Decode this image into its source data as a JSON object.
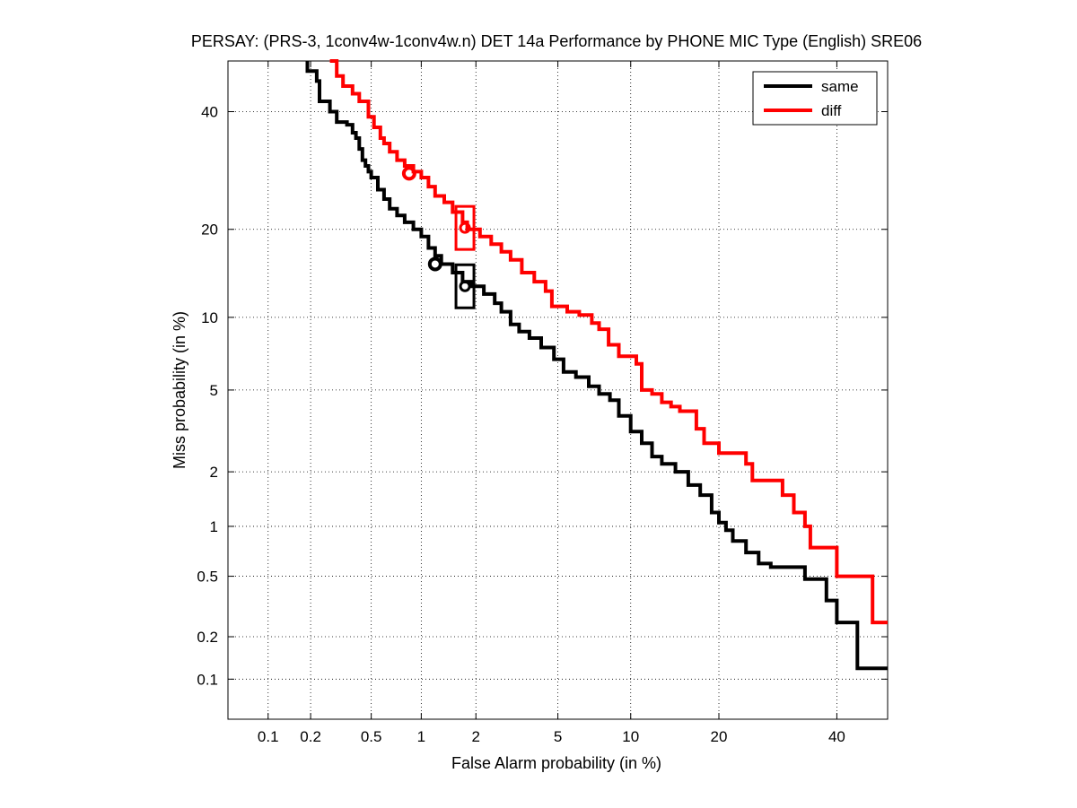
{
  "chart_data": {
    "type": "line",
    "title": "PERSAY: (PRS-3, 1conv4w-1conv4w.n) DET 14a Performance by PHONE MIC Type (English) SRE06",
    "xlabel": "False Alarm probability (in %)",
    "ylabel": "Miss probability (in %)",
    "scale": "normal-deviate (probit) on both axes",
    "xlim": [
      0.05,
      50
    ],
    "ylim": [
      0.05,
      50
    ],
    "x_ticks": [
      0.1,
      0.2,
      0.5,
      1,
      2,
      5,
      10,
      20,
      40
    ],
    "x_tick_labels": [
      "0.1",
      "0.2",
      "0.5",
      "1",
      "2",
      "5",
      "10",
      "20",
      "40"
    ],
    "y_ticks": [
      0.1,
      0.2,
      0.5,
      1,
      2,
      5,
      10,
      20,
      40
    ],
    "y_tick_labels": [
      "0.1",
      "0.2",
      "0.5",
      "1",
      "2",
      "5",
      "10",
      "20",
      "40"
    ],
    "grid": true,
    "legend_position": "top-right",
    "series": [
      {
        "name": "same",
        "color": "#000000",
        "points": [
          [
            0.19,
            50
          ],
          [
            0.19,
            48
          ],
          [
            0.22,
            46
          ],
          [
            0.23,
            42
          ],
          [
            0.27,
            40
          ],
          [
            0.3,
            38
          ],
          [
            0.35,
            37.5
          ],
          [
            0.38,
            36
          ],
          [
            0.4,
            35
          ],
          [
            0.42,
            33
          ],
          [
            0.44,
            31
          ],
          [
            0.46,
            30
          ],
          [
            0.48,
            29
          ],
          [
            0.5,
            28
          ],
          [
            0.55,
            26
          ],
          [
            0.6,
            24.5
          ],
          [
            0.65,
            23
          ],
          [
            0.72,
            22
          ],
          [
            0.8,
            21
          ],
          [
            0.9,
            20
          ],
          [
            1.0,
            19
          ],
          [
            1.1,
            17.5
          ],
          [
            1.2,
            16.5
          ],
          [
            1.3,
            15.5
          ],
          [
            1.5,
            14.5
          ],
          [
            1.7,
            13.5
          ],
          [
            1.9,
            13
          ],
          [
            2.2,
            12.2
          ],
          [
            2.5,
            11.3
          ],
          [
            2.7,
            10.5
          ],
          [
            3.0,
            9.4
          ],
          [
            3.3,
            8.8
          ],
          [
            3.7,
            8.3
          ],
          [
            4.2,
            7.6
          ],
          [
            4.8,
            6.8
          ],
          [
            5.3,
            6.0
          ],
          [
            6.0,
            5.7
          ],
          [
            6.8,
            5.2
          ],
          [
            7.5,
            4.8
          ],
          [
            8.3,
            4.5
          ],
          [
            9.0,
            3.8
          ],
          [
            10,
            3.2
          ],
          [
            11,
            2.8
          ],
          [
            12,
            2.4
          ],
          [
            13,
            2.2
          ],
          [
            14.5,
            2.0
          ],
          [
            16,
            1.7
          ],
          [
            17.5,
            1.5
          ],
          [
            19,
            1.2
          ],
          [
            20,
            1.05
          ],
          [
            21,
            0.95
          ],
          [
            22,
            0.82
          ],
          [
            24,
            0.7
          ],
          [
            26,
            0.6
          ],
          [
            28,
            0.57
          ],
          [
            32,
            0.57
          ],
          [
            34,
            0.48
          ],
          [
            37,
            0.48
          ],
          [
            38,
            0.35
          ],
          [
            40,
            0.35
          ],
          [
            40,
            0.25
          ],
          [
            44,
            0.25
          ],
          [
            44,
            0.12
          ],
          [
            50,
            0.12
          ]
        ],
        "operating_points": [
          {
            "marker": "circle",
            "x": 1.2,
            "y": 15.5
          },
          {
            "marker": "box",
            "x": 1.75,
            "y": 13
          }
        ]
      },
      {
        "name": "diff",
        "color": "#ff0000",
        "points": [
          [
            0.27,
            50
          ],
          [
            0.3,
            47
          ],
          [
            0.33,
            45
          ],
          [
            0.38,
            43.5
          ],
          [
            0.42,
            42
          ],
          [
            0.48,
            39
          ],
          [
            0.52,
            37
          ],
          [
            0.57,
            35
          ],
          [
            0.6,
            34
          ],
          [
            0.65,
            32.5
          ],
          [
            0.72,
            31
          ],
          [
            0.8,
            30
          ],
          [
            0.9,
            29
          ],
          [
            1.0,
            28
          ],
          [
            1.1,
            26.5
          ],
          [
            1.2,
            25
          ],
          [
            1.35,
            24
          ],
          [
            1.5,
            22.5
          ],
          [
            1.7,
            21
          ],
          [
            1.8,
            20
          ],
          [
            2.1,
            19
          ],
          [
            2.4,
            18
          ],
          [
            2.7,
            17
          ],
          [
            3.0,
            16
          ],
          [
            3.4,
            14.5
          ],
          [
            3.9,
            13.5
          ],
          [
            4.4,
            12.5
          ],
          [
            4.7,
            11
          ],
          [
            5.5,
            10.5
          ],
          [
            6.2,
            10.2
          ],
          [
            7.0,
            9.5
          ],
          [
            7.5,
            9.0
          ],
          [
            8.2,
            7.8
          ],
          [
            9.0,
            7.0
          ],
          [
            10.5,
            6.5
          ],
          [
            11.0,
            5.0
          ],
          [
            12,
            4.8
          ],
          [
            13,
            4.4
          ],
          [
            14,
            4.2
          ],
          [
            15,
            4.0
          ],
          [
            17,
            3.3
          ],
          [
            18,
            2.8
          ],
          [
            20,
            2.5
          ],
          [
            23,
            2.5
          ],
          [
            24,
            2.2
          ],
          [
            25,
            1.8
          ],
          [
            28,
            1.8
          ],
          [
            30,
            1.5
          ],
          [
            32,
            1.2
          ],
          [
            34,
            1.0
          ],
          [
            35,
            0.75
          ],
          [
            38,
            0.75
          ],
          [
            40,
            0.5
          ],
          [
            47,
            0.5
          ],
          [
            47,
            0.25
          ],
          [
            50,
            0.25
          ]
        ],
        "operating_points": [
          {
            "marker": "circle",
            "x": 0.85,
            "y": 28.7
          },
          {
            "marker": "box",
            "x": 1.75,
            "y": 20.2
          }
        ]
      }
    ]
  }
}
